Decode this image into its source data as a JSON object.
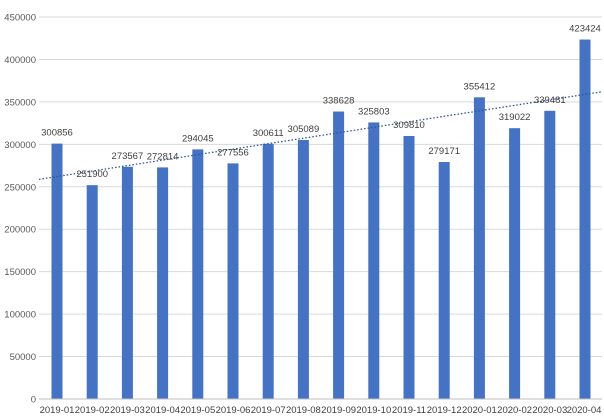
{
  "chart_data": {
    "type": "bar",
    "title": "",
    "xlabel": "",
    "ylabel": "",
    "categories": [
      "2019-01",
      "2019-02",
      "2019-03",
      "2019-04",
      "2019-05",
      "2019-06",
      "2019-07",
      "2019-08",
      "2019-09",
      "2019-10",
      "2019-11",
      "2019-12",
      "2020-01",
      "2020-02",
      "2020-03",
      "2020-04"
    ],
    "category_labels": [
      "2019-01",
      "2019-02",
      "2019-03",
      "2019-04",
      "2019-05",
      "2019-06",
      "2019-07",
      "2019-08",
      "2019-09",
      "2019-10",
      "2019-11",
      "2019-12",
      "2020-01",
      "2020-02",
      "2020-03",
      "2020-04"
    ],
    "values": [
      300856,
      251900,
      273567,
      272814,
      294045,
      277556,
      300611,
      305089,
      338628,
      325803,
      309810,
      279171,
      355412,
      319022,
      339481,
      423424
    ],
    "data_labels": [
      "300856",
      "251900",
      "273567",
      "272814",
      "294045",
      "277556",
      "300611",
      "305089",
      "338628",
      "325803",
      "309810",
      "279171",
      "355412",
      "319022",
      "339481",
      "423424"
    ],
    "ylim": [
      0,
      450000
    ],
    "yticks": [
      0,
      50000,
      100000,
      150000,
      200000,
      250000,
      300000,
      350000,
      400000,
      450000
    ],
    "ytick_labels": [
      "0",
      "50000",
      "100000",
      "150000",
      "200000",
      "250000",
      "300000",
      "350000",
      "400000",
      "450000"
    ],
    "grid": true,
    "trendline": "linear, dotted",
    "legend": "none",
    "colors": {
      "bar": "#4472C4",
      "trendline": "#2E5597",
      "grid": "#D9D9D9",
      "axis": "#BFBFBF"
    }
  }
}
